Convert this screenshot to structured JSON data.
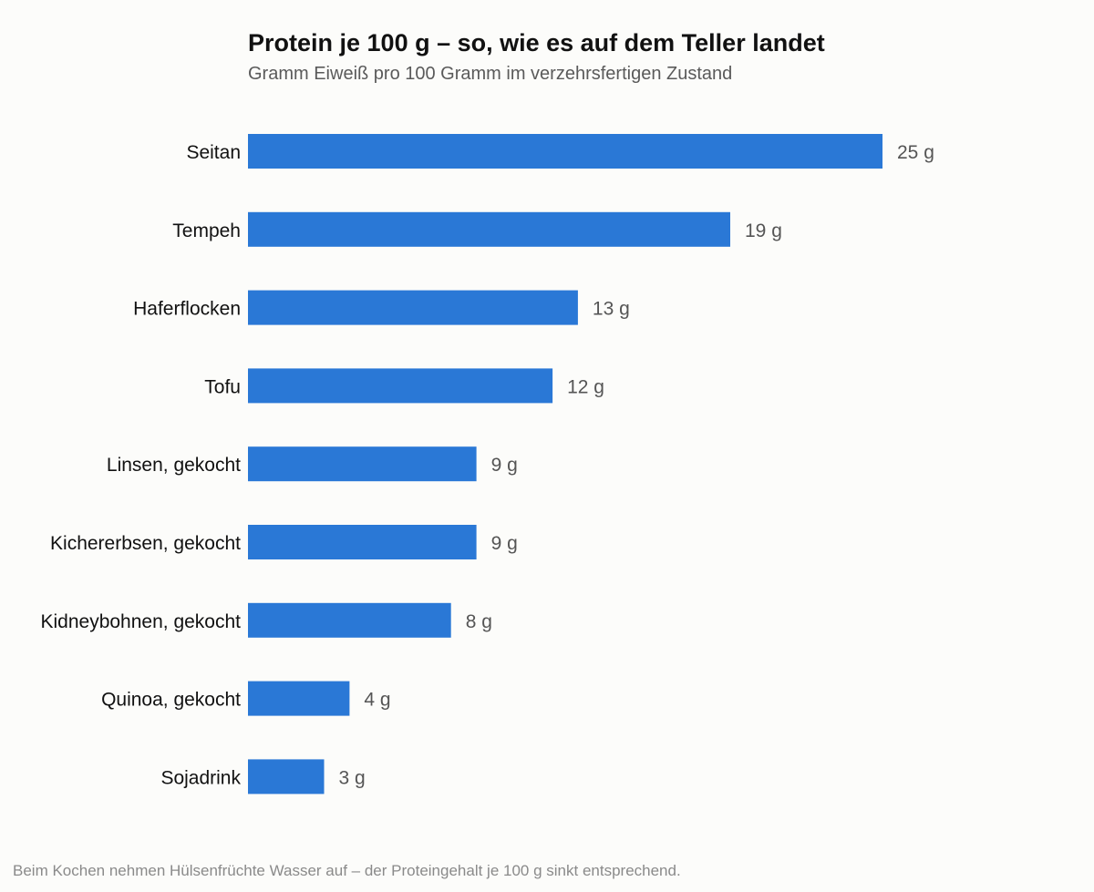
{
  "chart_data": {
    "type": "bar",
    "orientation": "horizontal",
    "title": "Protein je 100 g – so, wie es auf dem Teller landet",
    "subtitle": "Gramm Eiweiß pro 100 Gramm im verzehrsfertigen Zustand",
    "categories": [
      "Seitan",
      "Tempeh",
      "Haferflocken",
      "Tofu",
      "Linsen, gekocht",
      "Kichererbsen, gekocht",
      "Kidneybohnen, gekocht",
      "Quinoa, gekocht",
      "Sojadrink"
    ],
    "values": [
      25,
      19,
      13,
      12,
      9,
      9,
      8,
      4,
      3
    ],
    "value_labels": [
      "25 g",
      "19 g",
      "13 g",
      "12 g",
      "9 g",
      "9 g",
      "8 g",
      "4 g",
      "3 g"
    ],
    "unit": "g",
    "xlim": [
      0,
      25
    ],
    "bar_color": "#2a78d6",
    "grid": false,
    "legend": "none"
  },
  "footnote": "Beim Kochen nehmen Hülsenfrüchte Wasser auf – der Proteingehalt je 100 g sinkt entsprechend."
}
